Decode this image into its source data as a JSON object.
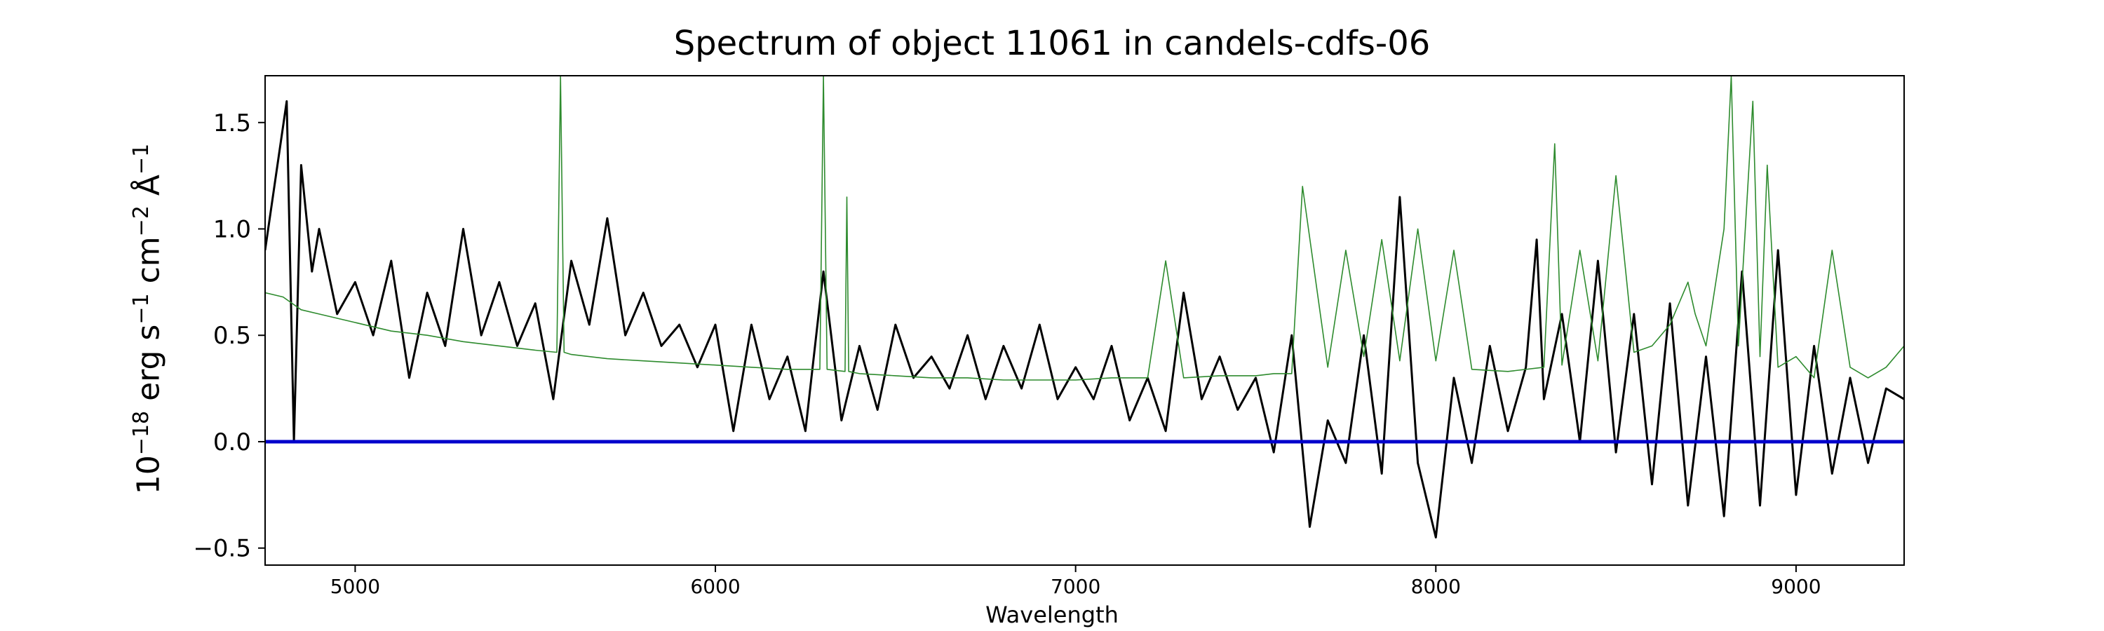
{
  "chart_data": {
    "type": "line",
    "title": "Spectrum of object 11061 in candels-cdfs-06",
    "xlabel": "Wavelength",
    "ylabel": {
      "base": "10",
      "exp1": "−18",
      "part_erg": " erg s",
      "exp2": "−1",
      "part_cm": " cm",
      "exp3": "−2",
      "part_ang": " Å",
      "exp4": "−1"
    },
    "xlim": [
      4750,
      9300
    ],
    "ylim": [
      -0.58,
      1.72
    ],
    "xticks": [
      5000,
      6000,
      7000,
      8000,
      9000
    ],
    "xtick_labels": [
      "5000",
      "6000",
      "7000",
      "8000",
      "9000"
    ],
    "yticks": [
      -0.5,
      0.0,
      0.5,
      1.0,
      1.5
    ],
    "ytick_labels": [
      "−0.5",
      "0.0",
      "0.5",
      "1.0",
      "1.5"
    ],
    "grid": false,
    "colors": {
      "spectrum": "#000000",
      "model": "#2e8b2e",
      "zero": "#0000cc"
    },
    "series": [
      {
        "role": "spectrum",
        "x": [
          4750,
          4780,
          4810,
          4830,
          4850,
          4880,
          4900,
          4950,
          5000,
          5050,
          5100,
          5150,
          5200,
          5250,
          5300,
          5350,
          5400,
          5450,
          5500,
          5550,
          5600,
          5650,
          5700,
          5750,
          5800,
          5850,
          5900,
          5950,
          6000,
          6050,
          6100,
          6150,
          6200,
          6250,
          6300,
          6350,
          6400,
          6450,
          6500,
          6550,
          6600,
          6650,
          6700,
          6750,
          6800,
          6850,
          6900,
          6950,
          7000,
          7050,
          7100,
          7150,
          7200,
          7250,
          7300,
          7350,
          7400,
          7450,
          7500,
          7550,
          7600,
          7650,
          7700,
          7750,
          7800,
          7850,
          7900,
          7950,
          8000,
          8050,
          8100,
          8150,
          8200,
          8250,
          8280,
          8300,
          8350,
          8400,
          8450,
          8500,
          8550,
          8600,
          8650,
          8700,
          8750,
          8800,
          8850,
          8900,
          8950,
          9000,
          9050,
          9100,
          9150,
          9200,
          9250,
          9300
        ],
        "y": [
          0.9,
          1.25,
          1.6,
          0.0,
          1.3,
          0.8,
          1.0,
          0.6,
          0.75,
          0.5,
          0.85,
          0.3,
          0.7,
          0.45,
          1.0,
          0.5,
          0.75,
          0.45,
          0.65,
          0.2,
          0.85,
          0.55,
          1.05,
          0.5,
          0.7,
          0.45,
          0.55,
          0.35,
          0.55,
          0.05,
          0.55,
          0.2,
          0.4,
          0.05,
          0.8,
          0.1,
          0.45,
          0.15,
          0.55,
          0.3,
          0.4,
          0.25,
          0.5,
          0.2,
          0.45,
          0.25,
          0.55,
          0.2,
          0.35,
          0.2,
          0.45,
          0.1,
          0.3,
          0.05,
          0.7,
          0.2,
          0.4,
          0.15,
          0.3,
          -0.05,
          0.5,
          -0.4,
          0.1,
          -0.1,
          0.5,
          -0.15,
          1.15,
          -0.1,
          -0.45,
          0.3,
          -0.1,
          0.45,
          0.05,
          0.35,
          0.95,
          0.2,
          0.6,
          0.0,
          0.85,
          -0.05,
          0.6,
          -0.2,
          0.65,
          -0.3,
          0.4,
          -0.35,
          0.8,
          -0.3,
          0.9,
          -0.25,
          0.45,
          -0.15,
          0.3,
          -0.1,
          0.25,
          0.2
        ]
      },
      {
        "role": "model",
        "x": [
          4750,
          4800,
          4850,
          4900,
          5000,
          5100,
          5200,
          5300,
          5400,
          5500,
          5560,
          5570,
          5580,
          5600,
          5700,
          5800,
          5900,
          6000,
          6100,
          6200,
          6290,
          6300,
          6310,
          6360,
          6365,
          6370,
          6400,
          6500,
          6600,
          6700,
          6800,
          6900,
          7000,
          7100,
          7200,
          7250,
          7300,
          7400,
          7500,
          7550,
          7600,
          7630,
          7700,
          7750,
          7800,
          7850,
          7900,
          7950,
          8000,
          8050,
          8100,
          8200,
          8300,
          8330,
          8350,
          8400,
          8450,
          8500,
          8550,
          8600,
          8650,
          8700,
          8720,
          8750,
          8800,
          8820,
          8840,
          8880,
          8900,
          8920,
          8950,
          9000,
          9050,
          9100,
          9150,
          9200,
          9250,
          9300
        ],
        "y": [
          0.7,
          0.68,
          0.62,
          0.6,
          0.56,
          0.52,
          0.5,
          0.47,
          0.45,
          0.43,
          0.42,
          1.72,
          0.42,
          0.41,
          0.39,
          0.38,
          0.37,
          0.36,
          0.35,
          0.34,
          0.34,
          1.72,
          0.34,
          0.33,
          1.15,
          0.33,
          0.32,
          0.31,
          0.3,
          0.3,
          0.29,
          0.29,
          0.29,
          0.3,
          0.3,
          0.85,
          0.3,
          0.31,
          0.31,
          0.32,
          0.32,
          1.2,
          0.35,
          0.9,
          0.4,
          0.95,
          0.38,
          1.0,
          0.38,
          0.9,
          0.34,
          0.33,
          0.35,
          1.4,
          0.36,
          0.9,
          0.38,
          1.25,
          0.42,
          0.45,
          0.55,
          0.75,
          0.6,
          0.45,
          1.0,
          1.72,
          0.45,
          1.6,
          0.4,
          1.3,
          0.35,
          0.4,
          0.3,
          0.9,
          0.35,
          0.3,
          0.35,
          0.45
        ]
      }
    ],
    "zero_line": 0.0
  }
}
